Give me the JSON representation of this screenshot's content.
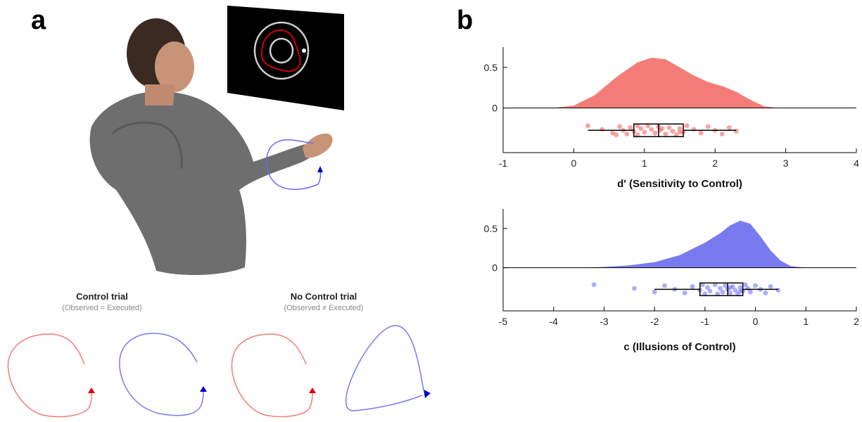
{
  "panels": {
    "a": "a",
    "b": "b"
  },
  "trials": {
    "control": {
      "title": "Control trial",
      "subtitle": "(Observed = Executed)"
    },
    "no_control": {
      "title": "No Control trial",
      "subtitle": "(Observed ≠ Executed)"
    }
  },
  "colors": {
    "red": "#f47c78",
    "red_dot": "#f05a58",
    "blue": "#7a7af0",
    "blue_dot": "#6a6af0",
    "red_arrow": "#e00000",
    "blue_arrow": "#0000c0"
  },
  "chart_data": [
    {
      "type": "raincloud",
      "xlabel": "d' (Sensitivity to Control)",
      "xlim": [
        -1,
        4
      ],
      "xticks": [
        -1,
        0,
        1,
        2,
        3,
        4
      ],
      "yticks": [
        0,
        0.5
      ],
      "ylim": [
        -0.55,
        0.75
      ],
      "color": "#f47c78",
      "density": {
        "x": [
          -0.3,
          0.0,
          0.3,
          0.6,
          0.9,
          1.1,
          1.3,
          1.5,
          1.7,
          1.9,
          2.1,
          2.3,
          2.5,
          2.7,
          2.9
        ],
        "y": [
          0.0,
          0.03,
          0.16,
          0.38,
          0.56,
          0.62,
          0.6,
          0.5,
          0.4,
          0.32,
          0.27,
          0.2,
          0.1,
          0.02,
          0.0
        ]
      },
      "box": {
        "whisker_low": 0.2,
        "q1": 0.85,
        "median": 1.2,
        "q3": 1.55,
        "whisker_high": 2.3
      },
      "points": [
        0.2,
        0.4,
        0.55,
        0.65,
        0.7,
        0.75,
        0.8,
        0.85,
        0.9,
        0.95,
        1.0,
        1.05,
        1.1,
        1.15,
        1.2,
        1.22,
        1.3,
        1.35,
        1.4,
        1.45,
        1.5,
        1.55,
        1.6,
        1.7,
        1.8,
        1.9,
        2.0,
        2.1,
        2.2,
        2.3,
        0.6,
        1.25,
        1.5,
        0.9
      ]
    },
    {
      "type": "raincloud",
      "xlabel": "c (Illusions of Control)",
      "xlim": [
        -5,
        2
      ],
      "xticks": [
        -5,
        -4,
        -3,
        -2,
        -1,
        0,
        1,
        2
      ],
      "yticks": [
        0,
        0.5
      ],
      "ylim": [
        -0.55,
        0.75
      ],
      "color": "#7a7af0",
      "density": {
        "x": [
          -3.5,
          -3.0,
          -2.5,
          -2.0,
          -1.5,
          -1.0,
          -0.7,
          -0.5,
          -0.3,
          -0.1,
          0.1,
          0.3,
          0.5,
          0.7,
          1.0
        ],
        "y": [
          0.0,
          0.01,
          0.03,
          0.07,
          0.16,
          0.32,
          0.44,
          0.54,
          0.6,
          0.56,
          0.4,
          0.22,
          0.09,
          0.02,
          0.0
        ]
      },
      "box": {
        "whisker_low": -2.0,
        "q1": -1.1,
        "median": -0.55,
        "q3": -0.25,
        "whisker_high": 0.45
      },
      "points": [
        -3.2,
        -2.4,
        -2.0,
        -1.8,
        -1.6,
        -1.4,
        -1.25,
        -1.1,
        -1.0,
        -0.95,
        -0.9,
        -0.8,
        -0.7,
        -0.65,
        -0.6,
        -0.55,
        -0.5,
        -0.45,
        -0.4,
        -0.35,
        -0.3,
        -0.25,
        -0.2,
        -0.15,
        -0.1,
        0.0,
        0.1,
        0.2,
        0.3,
        0.45,
        -0.75,
        -0.5,
        -0.3,
        -1.05
      ]
    }
  ]
}
